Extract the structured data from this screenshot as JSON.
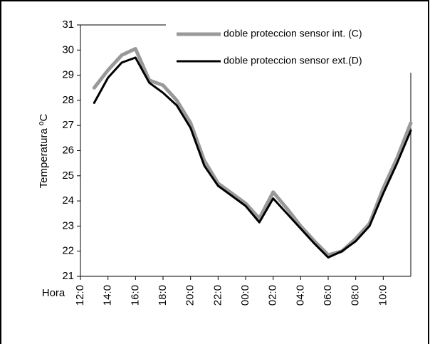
{
  "chart_data": {
    "type": "line",
    "y_label": "Temperatura ºC",
    "x_label": "Hora",
    "categories": [
      "12:0",
      null,
      "14:0",
      null,
      "16:0",
      null,
      "18:0",
      null,
      "20:0",
      null,
      "22:0",
      null,
      "00:0",
      null,
      "02:0",
      null,
      "04:0",
      null,
      "06:0",
      null,
      "08:0",
      null,
      "10:0",
      null,
      null
    ],
    "series": [
      {
        "name": "doble proteccion sensor int. (C)",
        "color": "#999999",
        "values": [
          null,
          28.5,
          29.2,
          29.8,
          30.05,
          28.8,
          28.6,
          28.0,
          27.1,
          25.6,
          24.7,
          24.3,
          23.9,
          23.3,
          24.35,
          23.7,
          23.0,
          22.4,
          21.85,
          22.0,
          22.5,
          23.1,
          24.5,
          25.7,
          27.1
        ]
      },
      {
        "name": "doble proteccion sensor ext.(D)",
        "color": "#000000",
        "values": [
          null,
          27.9,
          28.9,
          29.5,
          29.7,
          28.7,
          28.3,
          27.8,
          26.9,
          25.4,
          24.6,
          24.2,
          23.8,
          23.15,
          24.1,
          23.5,
          22.9,
          22.3,
          21.75,
          22.0,
          22.4,
          23.0,
          24.3,
          25.5,
          26.8
        ]
      }
    ],
    "ylim": [
      21,
      31
    ],
    "yticks": [
      21,
      22,
      23,
      24,
      25,
      26,
      27,
      28,
      29,
      30,
      31
    ]
  }
}
